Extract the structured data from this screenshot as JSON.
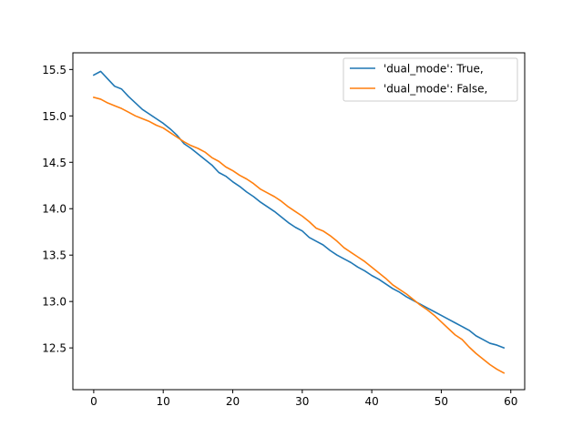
{
  "chart_data": {
    "type": "line",
    "title": "",
    "xlabel": "",
    "ylabel": "",
    "xlim": [
      -3,
      62
    ],
    "ylim": [
      12.05,
      15.68
    ],
    "x_ticks": [
      0,
      10,
      20,
      30,
      40,
      50,
      60
    ],
    "y_ticks": [
      12.5,
      13.0,
      13.5,
      14.0,
      14.5,
      15.0,
      15.5
    ],
    "grid": false,
    "legend_position": "top-right",
    "x": [
      0,
      1,
      2,
      3,
      4,
      5,
      6,
      7,
      8,
      9,
      10,
      11,
      12,
      13,
      14,
      15,
      16,
      17,
      18,
      19,
      20,
      21,
      22,
      23,
      24,
      25,
      26,
      27,
      28,
      29,
      30,
      31,
      32,
      33,
      34,
      35,
      36,
      37,
      38,
      39,
      40,
      41,
      42,
      43,
      44,
      45,
      46,
      47,
      48,
      49,
      50,
      51,
      52,
      53,
      54,
      55,
      56,
      57,
      58,
      59
    ],
    "series": [
      {
        "name": "'dual_mode': True,",
        "color": "#1f77b4",
        "values": [
          15.44,
          15.48,
          15.4,
          15.32,
          15.29,
          15.21,
          15.14,
          15.07,
          15.02,
          14.97,
          14.92,
          14.86,
          14.79,
          14.7,
          14.65,
          14.59,
          14.53,
          14.47,
          14.39,
          14.35,
          14.29,
          14.24,
          14.18,
          14.13,
          14.07,
          14.02,
          13.97,
          13.91,
          13.85,
          13.8,
          13.76,
          13.69,
          13.65,
          13.61,
          13.55,
          13.5,
          13.46,
          13.42,
          13.37,
          13.33,
          13.28,
          13.24,
          13.19,
          13.14,
          13.1,
          13.05,
          13.01,
          12.97,
          12.93,
          12.89,
          12.85,
          12.81,
          12.77,
          12.73,
          12.69,
          12.63,
          12.59,
          12.55,
          12.53,
          12.5
        ]
      },
      {
        "name": "'dual_mode': False,",
        "color": "#ff7f0e",
        "values": [
          15.2,
          15.18,
          15.14,
          15.11,
          15.08,
          15.04,
          15.0,
          14.97,
          14.94,
          14.9,
          14.87,
          14.82,
          14.77,
          14.72,
          14.68,
          14.65,
          14.61,
          14.55,
          14.51,
          14.45,
          14.41,
          14.36,
          14.32,
          14.27,
          14.21,
          14.17,
          14.13,
          14.08,
          14.02,
          13.97,
          13.92,
          13.86,
          13.79,
          13.76,
          13.71,
          13.65,
          13.58,
          13.53,
          13.48,
          13.43,
          13.37,
          13.31,
          13.25,
          13.18,
          13.13,
          13.08,
          13.02,
          12.96,
          12.91,
          12.85,
          12.78,
          12.71,
          12.64,
          12.59,
          12.51,
          12.44,
          12.38,
          12.32,
          12.27,
          12.23
        ]
      }
    ]
  }
}
